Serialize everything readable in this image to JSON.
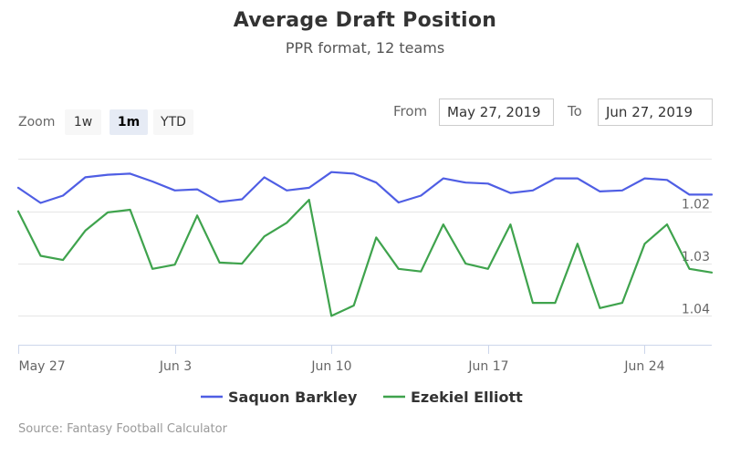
{
  "title": "Average Draft Position",
  "subtitle": "PPR format, 12 teams",
  "range_selector": {
    "zoom_label": "Zoom",
    "buttons": [
      {
        "label": "1w",
        "active": false
      },
      {
        "label": "1m",
        "active": true
      },
      {
        "label": "YTD",
        "active": false
      }
    ],
    "from_label": "From",
    "from_value": "May 27, 2019",
    "to_label": "To",
    "to_value": "Jun 27, 2019"
  },
  "credits": "Source: Fantasy Football Calculator",
  "chart_data": {
    "type": "line",
    "x_tick_labels": [
      "May 27",
      "Jun 3",
      "Jun 10",
      "Jun 17",
      "Jun 24"
    ],
    "x_tick_positions": [
      0,
      7,
      14,
      21,
      28
    ],
    "y_tick_labels": [
      "1.02",
      "1.03",
      "1.04"
    ],
    "y_tick_values": [
      1.02,
      1.03,
      1.04
    ],
    "ylim": [
      1.0075,
      1.0455
    ],
    "y_reversed": true,
    "y_axis_side": "right",
    "grid": true,
    "legend_position": "bottom",
    "series": [
      {
        "name": "Saquon Barkley",
        "color": "#4f5ee4",
        "x": [
          0,
          1,
          2,
          3,
          4,
          5,
          6,
          7,
          8,
          9,
          10,
          11,
          12,
          13,
          14,
          15,
          16,
          17,
          18,
          19,
          20,
          21,
          22,
          23,
          24,
          25,
          26,
          27,
          28,
          29,
          30,
          31
        ],
        "values": [
          1.0155,
          1.0184,
          1.017,
          1.0135,
          1.013,
          1.0128,
          1.0143,
          1.016,
          1.0158,
          1.0182,
          1.0177,
          1.0135,
          1.016,
          1.0155,
          1.0125,
          1.0128,
          1.0145,
          1.0183,
          1.017,
          1.0137,
          1.0145,
          1.0147,
          1.0165,
          1.016,
          1.0137,
          1.0137,
          1.0162,
          1.016,
          1.0137,
          1.014,
          1.0168,
          1.0168
        ]
      },
      {
        "name": "Ezekiel Elliott",
        "color": "#3fa34d",
        "x": [
          0,
          1,
          2,
          3,
          4,
          5,
          6,
          7,
          8,
          9,
          10,
          11,
          12,
          13,
          14,
          15,
          16,
          17,
          18,
          19,
          20,
          21,
          22,
          23,
          24,
          25,
          26,
          27,
          28,
          29,
          30,
          31
        ],
        "values": [
          1.02,
          1.0285,
          1.0293,
          1.0237,
          1.0202,
          1.0197,
          1.031,
          1.0302,
          1.0208,
          1.0298,
          1.03,
          1.0248,
          1.0222,
          1.0178,
          1.04,
          1.038,
          1.025,
          1.031,
          1.0315,
          1.0225,
          1.03,
          1.031,
          1.0225,
          1.0375,
          1.0375,
          1.0262,
          1.0385,
          1.0375,
          1.0262,
          1.0225,
          1.031,
          1.0317
        ]
      }
    ]
  }
}
